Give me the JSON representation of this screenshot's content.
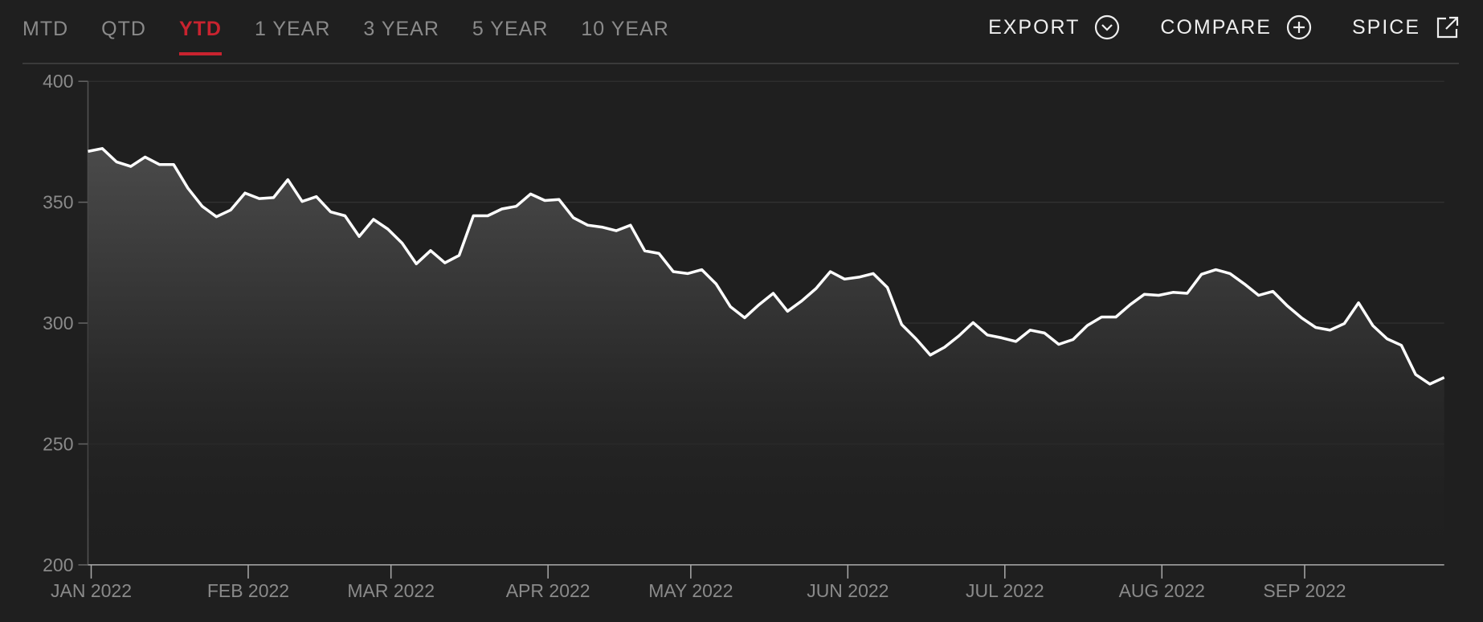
{
  "tabs": [
    "MTD",
    "QTD",
    "YTD",
    "1 YEAR",
    "3 YEAR",
    "5 YEAR",
    "10 YEAR"
  ],
  "selected_tab": 2,
  "actions": [
    "EXPORT",
    "COMPARE",
    "SPICE"
  ],
  "chart_data": {
    "type": "line",
    "categories": [
      "JAN 2022",
      null,
      null,
      null,
      null,
      null,
      null,
      null,
      null,
      null,
      null,
      "FEB 2022",
      null,
      null,
      null,
      null,
      null,
      null,
      null,
      null,
      null,
      "MAR 2022",
      null,
      null,
      null,
      null,
      null,
      null,
      null,
      null,
      null,
      null,
      "APR 2022",
      null,
      null,
      null,
      null,
      null,
      null,
      null,
      null,
      null,
      "MAY 2022",
      null,
      null,
      null,
      null,
      null,
      null,
      null,
      null,
      null,
      null,
      "JUN 2022",
      null,
      null,
      null,
      null,
      null,
      null,
      null,
      null,
      null,
      null,
      "JUL 2022",
      null,
      null,
      null,
      null,
      null,
      null,
      null,
      null,
      null,
      null,
      "AUG 2022",
      null,
      null,
      null,
      null,
      null,
      null,
      null,
      null,
      null,
      "SEP 2022",
      null,
      null,
      null,
      null,
      null,
      null,
      null,
      null,
      null,
      null
    ],
    "values": [
      371.0,
      372.2,
      366.7,
      364.8,
      368.7,
      365.6,
      365.6,
      355.8,
      348.3,
      344.0,
      346.8,
      353.8,
      351.5,
      351.9,
      359.3,
      350.3,
      352.3,
      346.0,
      344.4,
      335.8,
      342.9,
      338.9,
      333.1,
      324.5,
      330.0,
      324.9,
      328.0,
      344.4,
      344.4,
      347.2,
      348.3,
      353.4,
      350.7,
      351.1,
      343.6,
      340.5,
      339.7,
      338.2,
      340.5,
      329.9,
      328.8,
      321.3,
      320.5,
      322.1,
      316.2,
      306.8,
      302.2,
      307.6,
      312.3,
      304.9,
      309.2,
      314.3,
      321.3,
      318.2,
      319.0,
      320.5,
      314.7,
      299.4,
      293.5,
      286.8,
      290.0,
      294.7,
      300.2,
      295.1,
      293.9,
      292.4,
      297.1,
      295.9,
      291.2,
      293.2,
      299.0,
      302.5,
      302.5,
      307.6,
      311.9,
      311.5,
      312.7,
      312.3,
      320.2,
      322.1,
      320.5,
      316.2,
      311.5,
      313.1,
      307.2,
      302.2,
      298.2,
      297.1,
      299.8,
      308.4,
      299.0,
      293.5,
      290.8,
      278.7,
      274.8,
      277.5
    ],
    "color": "#ffffff",
    "ylim": [
      200,
      400
    ],
    "yticks": [
      200,
      250,
      300,
      350,
      400
    ],
    "grid": true
  }
}
